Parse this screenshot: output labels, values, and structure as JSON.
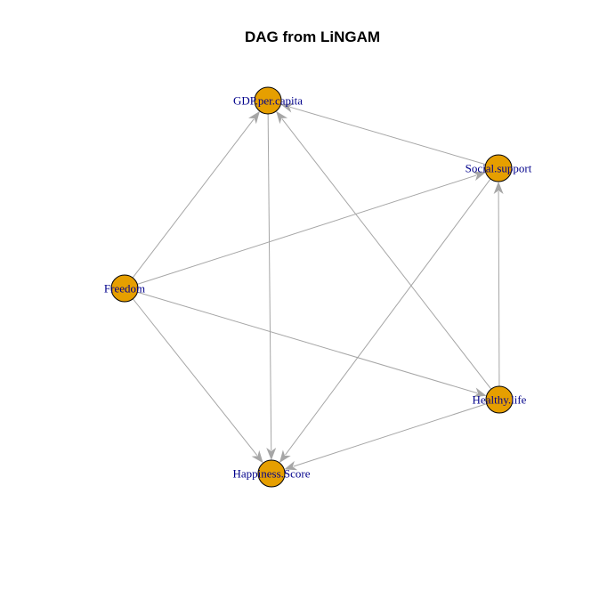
{
  "title": "DAG from LiNGAM",
  "colors": {
    "background": "#ffffff",
    "node_fill": "#e69f00",
    "node_stroke": "#000000",
    "edge": "#a6a6a6",
    "label": "#00008b",
    "title": "#000000"
  },
  "nodes": [
    {
      "id": "gdp",
      "label": "GDP.per.capita"
    },
    {
      "id": "social",
      "label": "Social.support"
    },
    {
      "id": "freedom",
      "label": "Freedom"
    },
    {
      "id": "health",
      "label": "Healthy.life"
    },
    {
      "id": "happy",
      "label": "Happiness.Score"
    }
  ],
  "edges": [
    {
      "from": "social",
      "to": "gdp"
    },
    {
      "from": "freedom",
      "to": "gdp"
    },
    {
      "from": "health",
      "to": "gdp"
    },
    {
      "from": "freedom",
      "to": "social"
    },
    {
      "from": "health",
      "to": "social"
    },
    {
      "from": "freedom",
      "to": "health"
    },
    {
      "from": "gdp",
      "to": "happy"
    },
    {
      "from": "social",
      "to": "happy"
    },
    {
      "from": "freedom",
      "to": "happy"
    },
    {
      "from": "health",
      "to": "happy"
    }
  ]
}
